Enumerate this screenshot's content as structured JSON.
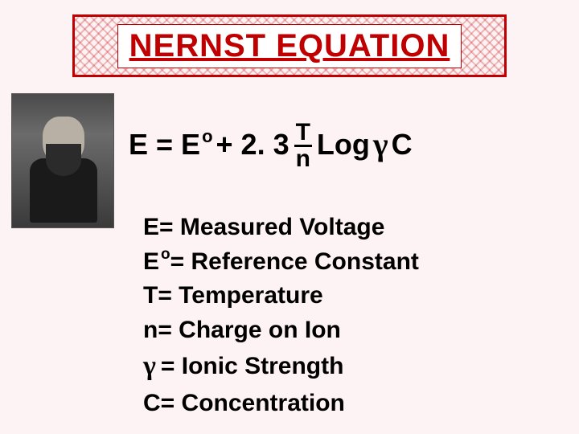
{
  "title": "NERNST EQUATION",
  "equation": {
    "lhs": "E = E",
    "sup": "o",
    "plus": " + 2. 3 ",
    "frac_num": "T",
    "frac_den": "n",
    "log": " Log ",
    "gamma": "γ",
    "tail": " C"
  },
  "definitions": [
    {
      "sym": "E",
      "sup": "",
      "rest": " = Measured Voltage"
    },
    {
      "sym": "E",
      "sup": "o",
      "rest": " = Reference Constant"
    },
    {
      "sym": "T",
      "sup": "",
      "rest": " = Temperature"
    },
    {
      "sym": "n",
      "sup": "",
      "rest": " = Charge on Ion"
    },
    {
      "sym": "γ",
      "sup": "",
      "rest": " = Ionic Strength",
      "greek": true
    },
    {
      "sym": "C",
      "sup": "",
      "rest": " = Concentration"
    }
  ],
  "colors": {
    "background": "#fdf2f4",
    "title_red": "#c00000",
    "text": "#000000"
  }
}
